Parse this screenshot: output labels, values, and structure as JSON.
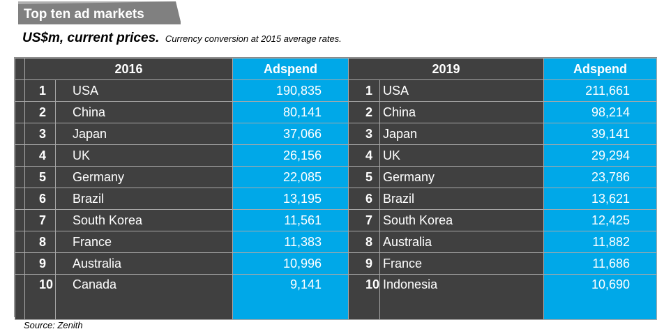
{
  "title": "Top ten ad markets",
  "subtitle": {
    "main": "US$m, current prices.",
    "note": "Currency conversion at 2015 average rates."
  },
  "table": {
    "left_header": {
      "year": "2016",
      "metric": "Adspend"
    },
    "right_header": {
      "year": "2019",
      "metric": "Adspend"
    },
    "rows_2016": [
      {
        "rank": "1",
        "country": "USA",
        "adspend": "190,835"
      },
      {
        "rank": "2",
        "country": "China",
        "adspend": "80,141"
      },
      {
        "rank": "3",
        "country": "Japan",
        "adspend": "37,066"
      },
      {
        "rank": "4",
        "country": "UK",
        "adspend": "26,156"
      },
      {
        "rank": "5",
        "country": "Germany",
        "adspend": "22,085"
      },
      {
        "rank": "6",
        "country": "Brazil",
        "adspend": "13,195"
      },
      {
        "rank": "7",
        "country": "South Korea",
        "adspend": "11,561"
      },
      {
        "rank": "8",
        "country": "France",
        "adspend": "11,383"
      },
      {
        "rank": "9",
        "country": "Australia",
        "adspend": "10,996"
      },
      {
        "rank": "10",
        "country": "Canada",
        "adspend": "9,141"
      }
    ],
    "rows_2019": [
      {
        "rank": "1",
        "country": "USA",
        "adspend": "211,661"
      },
      {
        "rank": "2",
        "country": "China",
        "adspend": "98,214"
      },
      {
        "rank": "3",
        "country": "Japan",
        "adspend": "39,141"
      },
      {
        "rank": "4",
        "country": "UK",
        "adspend": "29,294"
      },
      {
        "rank": "5",
        "country": "Germany",
        "adspend": "23,786"
      },
      {
        "rank": "6",
        "country": "Brazil",
        "adspend": "13,621"
      },
      {
        "rank": "7",
        "country": "South Korea",
        "adspend": "12,425"
      },
      {
        "rank": "8",
        "country": "Australia",
        "adspend": "11,882"
      },
      {
        "rank": "9",
        "country": "France",
        "adspend": "11,686"
      },
      {
        "rank": "10",
        "country": "Indonesia",
        "adspend": "10,690"
      }
    ]
  },
  "source": "Source: Zenith",
  "colors": {
    "dark_cell": "#404040",
    "blue_cell": "#00a8e8",
    "title_tab": "#808080"
  }
}
